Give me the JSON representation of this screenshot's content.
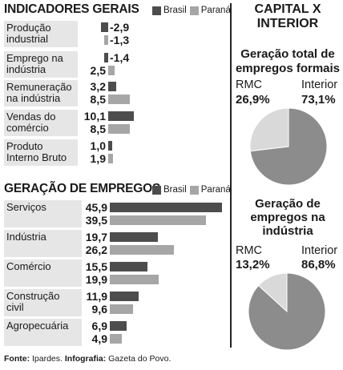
{
  "left": {
    "top": {
      "title": "INDICADORES GERAIS",
      "legend": [
        "Brasil",
        "Paraná"
      ]
    },
    "bottom": {
      "title": "GERAÇÃO DE EMPREGOS",
      "legend": [
        "Brasil",
        "Paraná"
      ]
    }
  },
  "right": {
    "title_line1": "CAPITAL X",
    "title_line2": "INTERIOR",
    "pie1": {
      "title_line1": "Geração total de",
      "title_line2": "empregos formais",
      "rmc_label": "RMC",
      "rmc_value": "26,9%",
      "interior_label": "Interior",
      "interior_value": "73,1%"
    },
    "pie2": {
      "title_line1": "Geração de",
      "title_line2": "empregos na",
      "title_line3": "indústria",
      "rmc_label": "RMC",
      "rmc_value": "13,2%",
      "interior_label": "Interior",
      "interior_value": "86,8%"
    }
  },
  "source": {
    "label1": "Fonte:",
    "text1": "Ipardes.",
    "label2": "Infografia:",
    "text2": "Gazeta do Povo."
  },
  "colors": {
    "brasil": "#4d4d4d",
    "parana": "#a6a6a6",
    "label_bg": "#e6e6e6",
    "pie_rmc": "#d9d9d9",
    "pie_interior": "#8c8c8c"
  },
  "chart_data": [
    {
      "type": "bar",
      "title": "INDICADORES GERAIS",
      "categories": [
        [
          "Produção",
          "industrial"
        ],
        [
          "Emprego na",
          "indústria"
        ],
        [
          "Remuneração",
          "na indústria"
        ],
        [
          "Vendas do",
          "comércio"
        ],
        [
          "Produto",
          "Interno Bruto"
        ]
      ],
      "series": [
        {
          "name": "Brasil",
          "values": [
            -2.9,
            -1.4,
            3.2,
            10.1,
            1.0
          ],
          "labels": [
            "-2,9",
            "-1,4",
            "3,2",
            "10,1",
            "1,0"
          ]
        },
        {
          "name": "Paraná",
          "values": [
            -1.3,
            2.5,
            8.5,
            8.5,
            1.9
          ],
          "labels": [
            "-1,3",
            "2,5",
            "8,5",
            "8,5",
            "1,9"
          ]
        }
      ]
    },
    {
      "type": "bar",
      "title": "GERAÇÃO DE EMPREGOS",
      "categories": [
        [
          "Serviços"
        ],
        [
          "Indústria"
        ],
        [
          "Comércio"
        ],
        [
          "Construção",
          "civil"
        ],
        [
          "Agropecuária"
        ]
      ],
      "series": [
        {
          "name": "Brasil",
          "values": [
            45.9,
            19.7,
            15.5,
            11.9,
            6.9
          ],
          "labels": [
            "45,9",
            "19,7",
            "15,5",
            "11,9",
            "6,9"
          ]
        },
        {
          "name": "Paraná",
          "values": [
            39.5,
            26.2,
            19.9,
            9.6,
            4.9
          ],
          "labels": [
            "39,5",
            "26,2",
            "19,9",
            "9,6",
            "4,9"
          ]
        }
      ]
    },
    {
      "type": "pie",
      "title": "Geração total de empregos formais",
      "categories": [
        "RMC",
        "Interior"
      ],
      "values": [
        26.9,
        73.1
      ]
    },
    {
      "type": "pie",
      "title": "Geração de empregos na indústria",
      "categories": [
        "RMC",
        "Interior"
      ],
      "values": [
        13.2,
        86.8
      ]
    }
  ]
}
